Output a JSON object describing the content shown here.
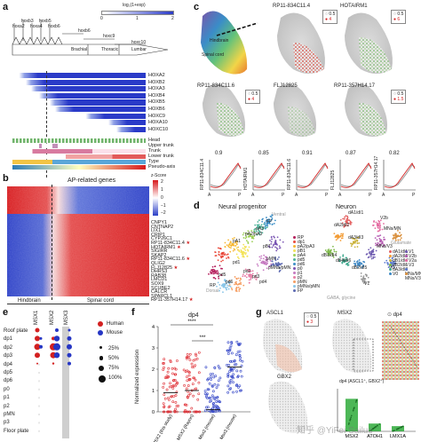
{
  "panels": {
    "a": {
      "label": "a",
      "colorbar_title": "log₂(1+exp)",
      "colorbar_ticks": [
        "0",
        "1",
        "2"
      ],
      "hox_top": [
        "hoxa2",
        "hoxb3",
        "hoxa4",
        "hoxb5",
        "hoxb6"
      ],
      "hox_mid": [
        "hoxb6",
        "hoxc9",
        "hoxc10"
      ],
      "regions": [
        "Brachial",
        "Thoracic",
        "Lumbar"
      ],
      "genes": [
        "HOXA2",
        "HOXB2",
        "HOXA3",
        "HOXB4",
        "HOXB5",
        "HOXB6",
        "HOXC9",
        "HOXA10",
        "HOXC10"
      ],
      "tracks": [
        "Head",
        "Upper trunk",
        "Trunk",
        "Lower trunk",
        "Type",
        "Pseudo-axis"
      ]
    },
    "b": {
      "label": "b",
      "title": "AP-related genes",
      "colorbar_title": "z-Score",
      "colorbar_ticks": [
        "2",
        "1",
        "0",
        "−1",
        "−2"
      ],
      "genes": [
        "CNPY1",
        "CNTNAP2",
        "LIX1",
        "CRIP1",
        "CYP26C1",
        "RP11-834C11.4",
        "HOTAIRM1",
        "SIGIRR",
        "SKAP2",
        "RP11-834C11.6",
        "QLIG2",
        "FLJ12825",
        "DHRS3",
        "RAB38",
        "LMCD1",
        "SOX9",
        "SCUBE2",
        "CALCR",
        "SPARCL1",
        "RP11-357H14.17"
      ],
      "x_left": "Hindbrain",
      "x_right": "Spinal cord"
    },
    "c": {
      "label": "c",
      "titles": [
        "RP11-834C11.4",
        "HOTAIRM1",
        "RP11-834C11.6",
        "FLJ12825",
        "RP11-357H14.17"
      ],
      "labels": [
        "Hindbrain",
        "Spinal cord"
      ],
      "legend_values": [
        "0.5",
        "4",
        "0.5",
        "6",
        "0.5",
        "4",
        "0.5",
        "1.5"
      ],
      "corr_values": [
        "0.9",
        "0.85",
        "0.91",
        "0.87",
        "0.82"
      ],
      "curve_ylabels": [
        "RP11-834C11.4",
        "HOTAIRM1",
        "RP11-834C11.6",
        "FLJ12825",
        "RP11-357H14.17"
      ],
      "axis_a": "A",
      "axis_p": "P"
    },
    "d": {
      "label": "d",
      "left_title": "Neural progenitor",
      "right_title": "Neuron",
      "ventral": "Ventral",
      "dorsal": "Dorsal",
      "glutamate": "Glutamate",
      "gaba": "GABA, glycine",
      "prog_clusters": [
        "FP",
        "pA1",
        "pA2/pA3",
        "pA3",
        "pB1",
        "pMN",
        "pMNa/pMN",
        "pd1",
        "pd2",
        "pd3",
        "pd4",
        "pd5",
        "pd6",
        "RP"
      ],
      "neuron_clusters": [
        "dA1/dI1",
        "dA2/dI2",
        "dA3/dI3",
        "dB1/dI4",
        "dB4/dI6",
        "dB2/dI5",
        "MNs/V3",
        "MNs/MN",
        "V2b",
        "V1",
        "V0"
      ],
      "prog_legend": [
        "RP",
        "dp1",
        "pA2/pA3",
        "pB1",
        "pA4",
        "pd5",
        "pd6",
        "p0",
        "p1",
        "p2",
        "pMN",
        "pMNs/pMN",
        "FP"
      ],
      "neuron_legend": [
        "dA1/dI1",
        "dA2/dI2",
        "dB1/dI4",
        "dB2/dI5",
        "dA3/dI3",
        "V0",
        "V1",
        "V2b",
        "V2a",
        "V3",
        "MNs/MN",
        "MNs/V3"
      ]
    },
    "e": {
      "label": "e",
      "cols": [
        "MSX1",
        "MSX2",
        "MSX3"
      ],
      "rows": [
        "Roof plate",
        "dp1",
        "dp2",
        "dp3",
        "dp4",
        "dp5",
        "dp6",
        "p0",
        "p1",
        "p2",
        "pMN",
        "p3",
        "Floor plate"
      ],
      "legend": [
        "Human",
        "Mouse"
      ],
      "size_legend": [
        "25%",
        "50%",
        "75%",
        "100%"
      ]
    },
    "f": {
      "label": "f",
      "title": "dp4",
      "ylabel": "Normalized expression",
      "yticks": [
        "0",
        "1",
        "2",
        "3",
        "4"
      ],
      "sig1": "****",
      "sig2": "***",
      "xlabels": [
        "MSX2 (this study)",
        "MSX2 (Rayon)",
        "Msx2 (mouse)",
        "Msx3 (mouse)"
      ]
    },
    "g": {
      "label": "g",
      "titles": [
        "ASCL1",
        "MSX2",
        "GBX2"
      ],
      "legend_values": [
        "0.5",
        "3"
      ],
      "dp4_label": "dp4",
      "bar_title": "dp4 (ASCL1⁺, GBX2⁺)",
      "bar_xlabels": [
        "MSX2",
        "ATOH1",
        "LMX1A"
      ],
      "watermark": "知乎 @YiFei Sailus"
    }
  },
  "chart_data": [
    {
      "type": "heatmap",
      "title": "",
      "rows": [
        "HOXA2",
        "HOXB2",
        "HOXA3",
        "HOXB4",
        "HOXB5",
        "HOXB6",
        "HOXC9",
        "HOXA10",
        "HOXC10"
      ],
      "onset_fraction": [
        0.05,
        0.1,
        0.14,
        0.2,
        0.28,
        0.32,
        0.55,
        0.72,
        0.78
      ],
      "colorbar_range": [
        0,
        2
      ]
    },
    {
      "type": "heatmap",
      "title": "AP-related genes",
      "rows": [
        "CNPY1",
        "CNTNAP2",
        "LIX1",
        "CRIP1",
        "CYP26C1",
        "RP11-834C11.4",
        "HOTAIRM1",
        "SIGIRR",
        "SKAP2",
        "RP11-834C11.6",
        "QLIG2",
        "FLJ12825",
        "DHRS3",
        "RAB38",
        "LMCD1",
        "SOX9",
        "SCUBE2",
        "CALCR",
        "SPARCL1",
        "RP11-357H14.17"
      ],
      "hindbrain_high_rows": 5,
      "colorbar_range": [
        -2,
        2
      ]
    },
    {
      "type": "scatter",
      "title": "dp4",
      "categories": [
        "MSX2 (this study)",
        "MSX2 (Rayon)",
        "Msx2 (mouse)",
        "Msx3 (mouse)"
      ],
      "medians": [
        0.9,
        1.0,
        0.1,
        2.1
      ],
      "ylim": [
        0,
        4
      ],
      "colors": [
        "#e0343a",
        "#e0343a",
        "#3648c8",
        "#3648c8"
      ]
    },
    {
      "type": "bar",
      "title": "dp4 (ASCL1⁺, GBX2⁺)",
      "categories": [
        "MSX2",
        "ATOH1",
        "LMX1A"
      ],
      "values": [
        0.5,
        0.12,
        0.08
      ],
      "color": "#2eaa3a"
    }
  ]
}
